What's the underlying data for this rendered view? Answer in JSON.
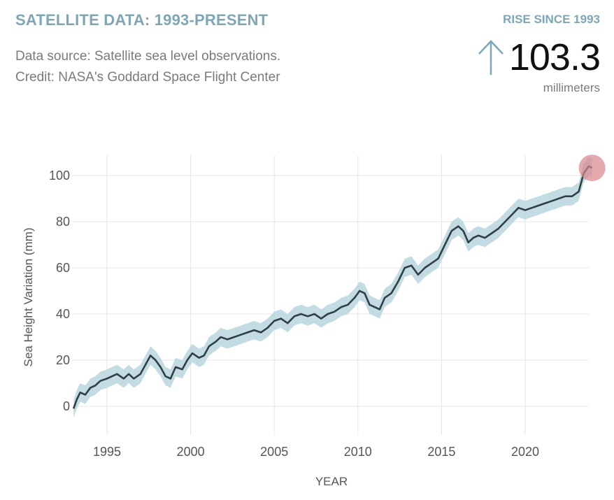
{
  "header": {
    "title": "SATELLITE DATA: 1993-PRESENT",
    "source_line": "Data source: Satellite sea level observations.",
    "credit_line": "Credit: NASA's Goddard Space Flight Center"
  },
  "rise": {
    "label": "RISE SINCE 1993",
    "value": "103.3",
    "unit": "millimeters",
    "arrow_icon": "arrow-up-icon"
  },
  "colors": {
    "accent": "#7ea6b5",
    "line": "#2f3f45",
    "band": "#b9d6df",
    "marker": "#d9868a",
    "grid": "#e6e6e6"
  },
  "chart_data": {
    "type": "line",
    "title": "SATELLITE DATA: 1993-PRESENT",
    "xlabel": "YEAR",
    "ylabel": "Sea Height Variation (mm)",
    "xlim": [
      1993,
      2024.4
    ],
    "ylim": [
      -14,
      110
    ],
    "x_ticks": [
      1995,
      2000,
      2005,
      2010,
      2015,
      2020
    ],
    "y_ticks": [
      0,
      20,
      40,
      60,
      80,
      100
    ],
    "grid": true,
    "uncertainty_band_mm": 4,
    "series": [
      {
        "x": [
          1993.0,
          1993.2,
          1993.4,
          1993.7,
          1994.0,
          1994.3,
          1994.6,
          1995.0,
          1995.3,
          1995.6,
          1996.0,
          1996.3,
          1996.6,
          1997.0,
          1997.3,
          1997.6,
          1997.9,
          1998.2,
          1998.5,
          1998.8,
          1999.1,
          1999.5,
          1999.8,
          2000.1,
          2000.5,
          2000.8,
          2001.1,
          2001.5,
          2001.8,
          2002.2,
          2002.6,
          2003.0,
          2003.4,
          2003.8,
          2004.2,
          2004.6,
          2005.0,
          2005.4,
          2005.8,
          2006.2,
          2006.6,
          2007.0,
          2007.4,
          2007.8,
          2008.2,
          2008.6,
          2009.0,
          2009.4,
          2009.8,
          2010.1,
          2010.4,
          2010.7,
          2011.0,
          2011.3,
          2011.6,
          2012.0,
          2012.4,
          2012.8,
          2013.2,
          2013.6,
          2014.0,
          2014.4,
          2014.8,
          2015.2,
          2015.6,
          2016.0,
          2016.3,
          2016.6,
          2016.9,
          2017.2,
          2017.6,
          2018.0,
          2018.4,
          2018.8,
          2019.2,
          2019.6,
          2020.0,
          2020.4,
          2020.8,
          2021.2,
          2021.6,
          2022.0,
          2022.4,
          2022.8,
          2023.2,
          2023.5,
          2023.8,
          2024.0
        ],
        "y": [
          -1,
          3,
          6,
          5,
          8,
          9,
          11,
          12,
          13,
          14,
          12,
          14,
          12,
          14,
          18,
          22,
          20,
          17,
          13,
          12,
          17,
          16,
          20,
          23,
          21,
          22,
          26,
          28,
          30,
          29,
          30,
          31,
          32,
          33,
          32,
          34,
          37,
          38,
          36,
          39,
          40,
          39,
          40,
          38,
          40,
          41,
          43,
          44,
          47,
          50,
          49,
          44,
          43,
          42,
          47,
          49,
          54,
          60,
          61,
          57,
          60,
          62,
          64,
          70,
          76,
          78,
          76,
          71,
          73,
          74,
          73,
          75,
          77,
          80,
          83,
          86,
          85,
          86,
          87,
          88,
          89,
          90,
          91,
          91,
          93,
          101,
          104,
          103.3
        ]
      }
    ],
    "highlight_point": {
      "x": 2024.0,
      "y": 103.3
    }
  }
}
